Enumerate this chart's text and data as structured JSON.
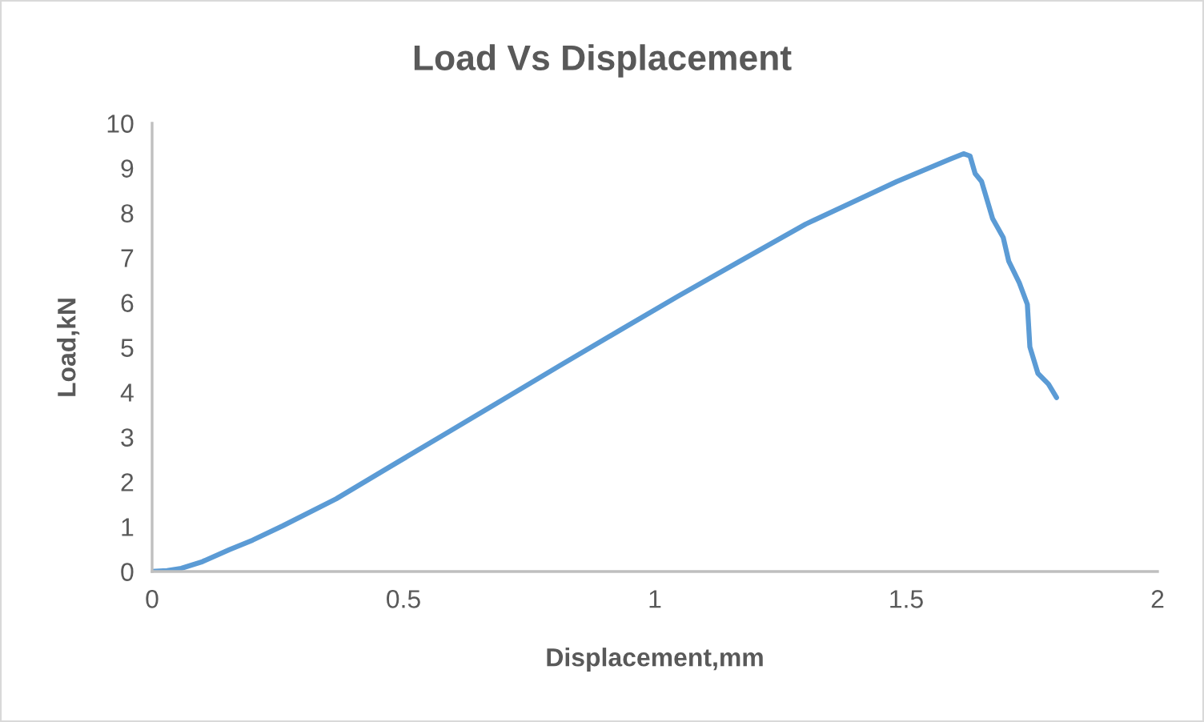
{
  "chart_data": {
    "type": "line",
    "title": "Load Vs Displacement",
    "xlabel": "Displacement,mm",
    "ylabel": "Load,kN",
    "x": [
      0,
      0.03,
      0.058,
      0.1,
      0.154,
      0.2,
      0.26,
      0.366,
      0.472,
      0.589,
      0.7,
      0.812,
      0.93,
      1.046,
      1.17,
      1.3,
      1.481,
      1.587,
      1.614,
      1.627,
      1.637,
      1.65,
      1.672,
      1.693,
      1.704,
      1.725,
      1.741,
      1.746,
      1.762,
      1.783,
      1.799
    ],
    "series": [
      {
        "color": "#5b9bd5",
        "values": [
          0,
          0.02,
          0.07,
          0.22,
          0.49,
          0.7,
          1.02,
          1.62,
          2.33,
          3.11,
          3.85,
          4.6,
          5.38,
          6.14,
          6.93,
          7.75,
          8.7,
          9.2,
          9.32,
          9.27,
          8.88,
          8.7,
          7.87,
          7.45,
          6.92,
          6.44,
          5.96,
          5.01,
          4.42,
          4.18,
          3.88
        ]
      }
    ],
    "xlim": [
      0,
      2
    ],
    "xticks": [
      0,
      0.5,
      1,
      1.5,
      2
    ],
    "ylim": [
      0,
      10
    ],
    "yticks": [
      0,
      1,
      2,
      3,
      4,
      5,
      6,
      7,
      8,
      9,
      10
    ],
    "grid": false,
    "marker": "none",
    "line_style": "solid"
  }
}
